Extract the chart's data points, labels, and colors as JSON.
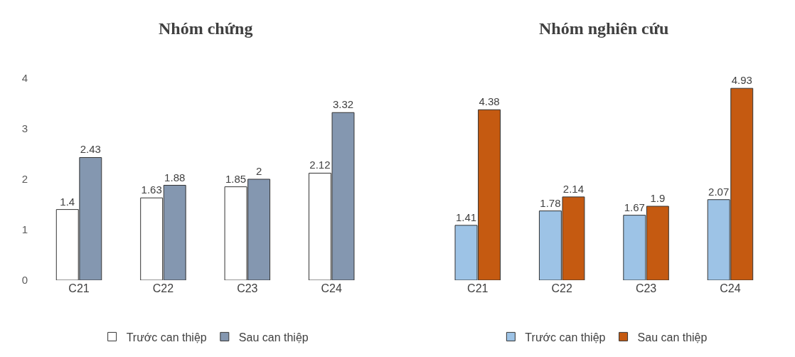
{
  "chart_data": [
    {
      "type": "bar",
      "title": "Nhóm chứng",
      "categories": [
        "C21",
        "C22",
        "C23",
        "C24"
      ],
      "series": [
        {
          "name": "Trước can thiệp",
          "color": "#ffffff",
          "values": [
            1.4,
            1.63,
            1.85,
            2.12
          ]
        },
        {
          "name": "Sau can thiệp",
          "color": "#8497b0",
          "values": [
            2.43,
            1.88,
            2,
            3.32
          ]
        }
      ],
      "ylim": [
        0,
        4
      ],
      "yticks": [
        0,
        1,
        2,
        3,
        4
      ],
      "legend": "bottom",
      "data_labels": true
    },
    {
      "type": "bar",
      "title": "Nhóm nghiên cứu",
      "categories": [
        "C21",
        "C22",
        "C23",
        "C24"
      ],
      "series": [
        {
          "name": "Trước can thiệp",
          "color": "#9dc3e6",
          "values": [
            1.41,
            1.78,
            1.67,
            2.07
          ]
        },
        {
          "name": "Sau can thiệp",
          "color": "#c55a11",
          "values": [
            4.38,
            2.14,
            1.9,
            4.93
          ]
        }
      ],
      "tick_labels": "x",
      "legend": "bottom",
      "data_labels": true
    }
  ]
}
